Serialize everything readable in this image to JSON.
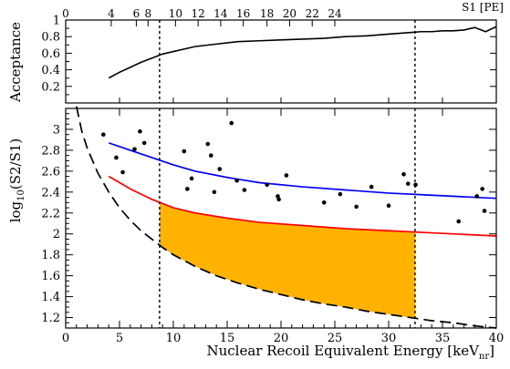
{
  "chart_data": [
    {
      "type": "line",
      "panel": "acceptance",
      "ylabel": "Acceptance",
      "ylim": [
        0,
        1
      ],
      "yticks": [
        0.2,
        0.4,
        0.6,
        0.8,
        1
      ],
      "ytick_labels": [
        "0.2",
        "0.4",
        "0.6",
        "0.8",
        "1"
      ],
      "xlim": [
        0,
        40
      ],
      "top_axis": {
        "label": "S1 [PE]",
        "ticks": [
          {
            "x": 4.23,
            "label": "4"
          },
          {
            "x": 6.56,
            "label": "6"
          },
          {
            "x": 7.65,
            "label": "8"
          },
          {
            "x": 10.2,
            "label": "10"
          },
          {
            "x": 12.3,
            "label": "12"
          },
          {
            "x": 14.4,
            "label": "14"
          },
          {
            "x": 16.5,
            "label": "16"
          },
          {
            "x": 18.7,
            "label": "18"
          },
          {
            "x": 20.8,
            "label": "20"
          },
          {
            "x": 22.9,
            "label": "22"
          },
          {
            "x": 25.0,
            "label": "24"
          }
        ]
      },
      "series": [
        {
          "x": [
            4,
            5,
            6,
            7,
            8,
            9,
            10,
            11,
            12,
            14,
            16,
            18,
            20,
            22,
            24,
            26,
            28,
            30,
            32,
            33,
            34,
            35,
            36,
            37,
            38,
            39,
            40
          ],
          "y": [
            0.3,
            0.37,
            0.43,
            0.49,
            0.54,
            0.59,
            0.62,
            0.65,
            0.68,
            0.71,
            0.74,
            0.75,
            0.76,
            0.77,
            0.78,
            0.8,
            0.81,
            0.83,
            0.85,
            0.86,
            0.86,
            0.87,
            0.87,
            0.88,
            0.91,
            0.86,
            0.92
          ]
        }
      ],
      "threshold_lines_x": [
        8.72,
        32.45
      ]
    },
    {
      "type": "scatter",
      "panel": "discrimination",
      "xlabel": "Nuclear Recoil Equivalent Energy [keV",
      "xlabel_subscript": "nr",
      "xlabel_close": "]",
      "ylabel_prefix": "log",
      "ylabel_subscript": "10",
      "ylabel_suffix": "(S2/S1)",
      "xlim": [
        0,
        40
      ],
      "ylim": [
        1.1,
        3.2
      ],
      "xticks": [
        0,
        5,
        10,
        15,
        20,
        25,
        30,
        35,
        40
      ],
      "xtick_labels": [
        "0",
        "5",
        "10",
        "15",
        "20",
        "25",
        "30",
        "35",
        "40"
      ],
      "yticks": [
        1.2,
        1.4,
        1.6,
        1.8,
        2,
        2.2,
        2.4,
        2.6,
        2.8,
        3
      ],
      "ytick_labels": [
        "1.2",
        "1.4",
        "1.6",
        "1.8",
        "2",
        "2.2",
        "2.4",
        "2.6",
        "2.8",
        "3"
      ],
      "points": [
        {
          "x": 3.5,
          "y": 2.95
        },
        {
          "x": 4.7,
          "y": 2.73
        },
        {
          "x": 5.3,
          "y": 2.59
        },
        {
          "x": 6.4,
          "y": 2.81
        },
        {
          "x": 6.9,
          "y": 2.98
        },
        {
          "x": 7.3,
          "y": 2.87
        },
        {
          "x": 11.0,
          "y": 2.79
        },
        {
          "x": 11.3,
          "y": 2.43
        },
        {
          "x": 11.7,
          "y": 2.53
        },
        {
          "x": 13.2,
          "y": 2.86
        },
        {
          "x": 13.5,
          "y": 2.75
        },
        {
          "x": 13.8,
          "y": 2.4
        },
        {
          "x": 14.3,
          "y": 2.62
        },
        {
          "x": 15.4,
          "y": 3.06
        },
        {
          "x": 15.9,
          "y": 2.51
        },
        {
          "x": 16.6,
          "y": 2.42
        },
        {
          "x": 18.7,
          "y": 2.47
        },
        {
          "x": 19.7,
          "y": 2.36
        },
        {
          "x": 19.8,
          "y": 2.33
        },
        {
          "x": 20.5,
          "y": 2.56
        },
        {
          "x": 24.0,
          "y": 2.3
        },
        {
          "x": 25.5,
          "y": 2.38
        },
        {
          "x": 27.0,
          "y": 2.26
        },
        {
          "x": 28.4,
          "y": 2.45
        },
        {
          "x": 30.0,
          "y": 2.27
        },
        {
          "x": 31.4,
          "y": 2.57
        },
        {
          "x": 31.8,
          "y": 2.48
        },
        {
          "x": 32.5,
          "y": 2.47
        },
        {
          "x": 36.5,
          "y": 2.12
        },
        {
          "x": 38.2,
          "y": 2.36
        },
        {
          "x": 38.7,
          "y": 2.43
        },
        {
          "x": 38.9,
          "y": 2.22
        }
      ],
      "series": [
        {
          "color": "#0000ff",
          "style": "solid",
          "x": [
            4,
            6,
            8,
            10,
            12,
            15,
            18,
            22,
            26,
            30,
            34,
            38,
            40
          ],
          "y": [
            2.87,
            2.8,
            2.73,
            2.66,
            2.6,
            2.54,
            2.49,
            2.45,
            2.42,
            2.39,
            2.37,
            2.35,
            2.34
          ]
        },
        {
          "color": "#ff0000",
          "style": "solid",
          "x": [
            4,
            6,
            8,
            10,
            12,
            15,
            18,
            22,
            26,
            30,
            34,
            38,
            40
          ],
          "y": [
            2.55,
            2.43,
            2.33,
            2.25,
            2.2,
            2.15,
            2.11,
            2.08,
            2.05,
            2.03,
            2.01,
            1.99,
            1.98
          ]
        },
        {
          "color": "#000000",
          "style": "dashed",
          "x": [
            1.0,
            1.5,
            2,
            3,
            4,
            5,
            6,
            7,
            8,
            9,
            10,
            12,
            14,
            16,
            18,
            20,
            22,
            24,
            26,
            28,
            30,
            32,
            34,
            36,
            38,
            40
          ],
          "y": [
            3.22,
            2.98,
            2.82,
            2.58,
            2.4,
            2.25,
            2.13,
            2.03,
            1.95,
            1.87,
            1.8,
            1.69,
            1.6,
            1.53,
            1.47,
            1.42,
            1.37,
            1.33,
            1.3,
            1.26,
            1.23,
            1.2,
            1.17,
            1.15,
            1.12,
            1.1
          ]
        }
      ],
      "fill_region": {
        "color": "#ffb300",
        "x_min": 8.72,
        "x_max": 32.45
      },
      "threshold_lines_x": [
        8.72,
        32.45
      ]
    }
  ]
}
